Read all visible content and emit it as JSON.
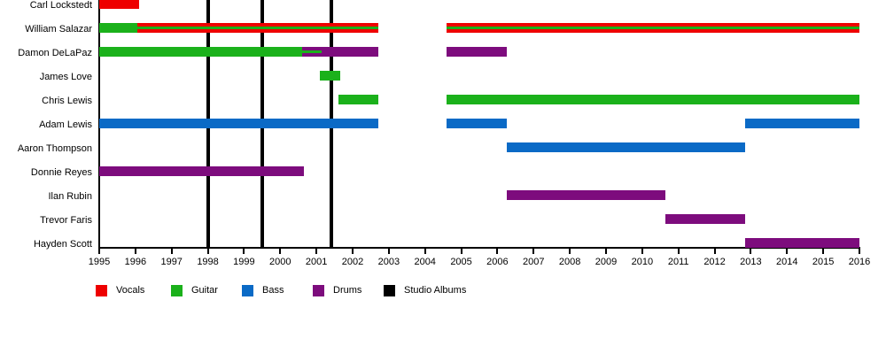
{
  "chart_data": {
    "type": "timeline",
    "title": "",
    "description": "Band member timeline showing each member's instrument roles by year, with vertical black lines marking studio album releases",
    "x_axis": {
      "min": 1995,
      "max": 2016,
      "tick_years": [
        1995,
        1996,
        1997,
        1998,
        1999,
        2000,
        2001,
        2002,
        2003,
        2004,
        2005,
        2006,
        2007,
        2008,
        2009,
        2010,
        2011,
        2012,
        2013,
        2014,
        2015,
        2016
      ]
    },
    "colors": {
      "vocals": "#ee0000",
      "guitar": "#1bb11b",
      "bass": "#0a6ac6",
      "drums": "#7d0c7d",
      "albums": "#000000",
      "axis": "#000000",
      "text": "#000000",
      "background": "#ffffff"
    },
    "legend": [
      {
        "role": "vocals",
        "label": "Vocals"
      },
      {
        "role": "guitar",
        "label": "Guitar"
      },
      {
        "role": "bass",
        "label": "Bass"
      },
      {
        "role": "drums",
        "label": "Drums"
      },
      {
        "role": "albums",
        "label": "Studio Albums"
      }
    ],
    "album_years": [
      1998.0,
      1999.5,
      2001.42
    ],
    "members": [
      {
        "name": "Carl Lockstedt",
        "bars": [
          {
            "role": "vocals",
            "start": 1995.0,
            "end": 1996.1
          }
        ]
      },
      {
        "name": "William Salazar",
        "bars": [
          {
            "role": "guitar",
            "start": 1995.0,
            "end": 1996.05
          },
          {
            "role": "vocals",
            "stripe": "guitar",
            "start": 1996.05,
            "end": 2002.7
          },
          {
            "role": "vocals",
            "stripe": "guitar",
            "start": 2004.6,
            "end": 2016.0
          }
        ]
      },
      {
        "name": "Damon DeLaPaz",
        "bars": [
          {
            "role": "guitar",
            "start": 1995.0,
            "end": 2000.6
          },
          {
            "role": "drums",
            "stripe": "guitar",
            "start": 2000.6,
            "end": 2001.15
          },
          {
            "role": "drums",
            "start": 2001.15,
            "end": 2002.7
          },
          {
            "role": "drums",
            "start": 2004.6,
            "end": 2006.25
          }
        ]
      },
      {
        "name": "James Love",
        "bars": [
          {
            "role": "guitar",
            "start": 2001.1,
            "end": 2001.65
          }
        ]
      },
      {
        "name": "Chris Lewis",
        "bars": [
          {
            "role": "guitar",
            "start": 2001.6,
            "end": 2002.7
          },
          {
            "role": "guitar",
            "start": 2004.6,
            "end": 2016.0
          }
        ]
      },
      {
        "name": "Adam Lewis",
        "bars": [
          {
            "role": "bass",
            "start": 1995.0,
            "end": 2002.7
          },
          {
            "role": "bass",
            "start": 2004.6,
            "end": 2006.25
          },
          {
            "role": "bass",
            "start": 2012.85,
            "end": 2016.0
          }
        ]
      },
      {
        "name": "Aaron Thompson",
        "bars": [
          {
            "role": "bass",
            "start": 2006.25,
            "end": 2012.85
          }
        ]
      },
      {
        "name": "Donnie Reyes",
        "bars": [
          {
            "role": "drums",
            "start": 1995.0,
            "end": 2000.65
          }
        ]
      },
      {
        "name": "Ilan Rubin",
        "bars": [
          {
            "role": "drums",
            "start": 2006.25,
            "end": 2010.65
          }
        ]
      },
      {
        "name": "Trevor Faris",
        "bars": [
          {
            "role": "drums",
            "start": 2010.65,
            "end": 2012.85
          }
        ]
      },
      {
        "name": "Hayden Scott",
        "bars": [
          {
            "role": "drums",
            "start": 2012.85,
            "end": 2016.0
          }
        ]
      }
    ]
  }
}
